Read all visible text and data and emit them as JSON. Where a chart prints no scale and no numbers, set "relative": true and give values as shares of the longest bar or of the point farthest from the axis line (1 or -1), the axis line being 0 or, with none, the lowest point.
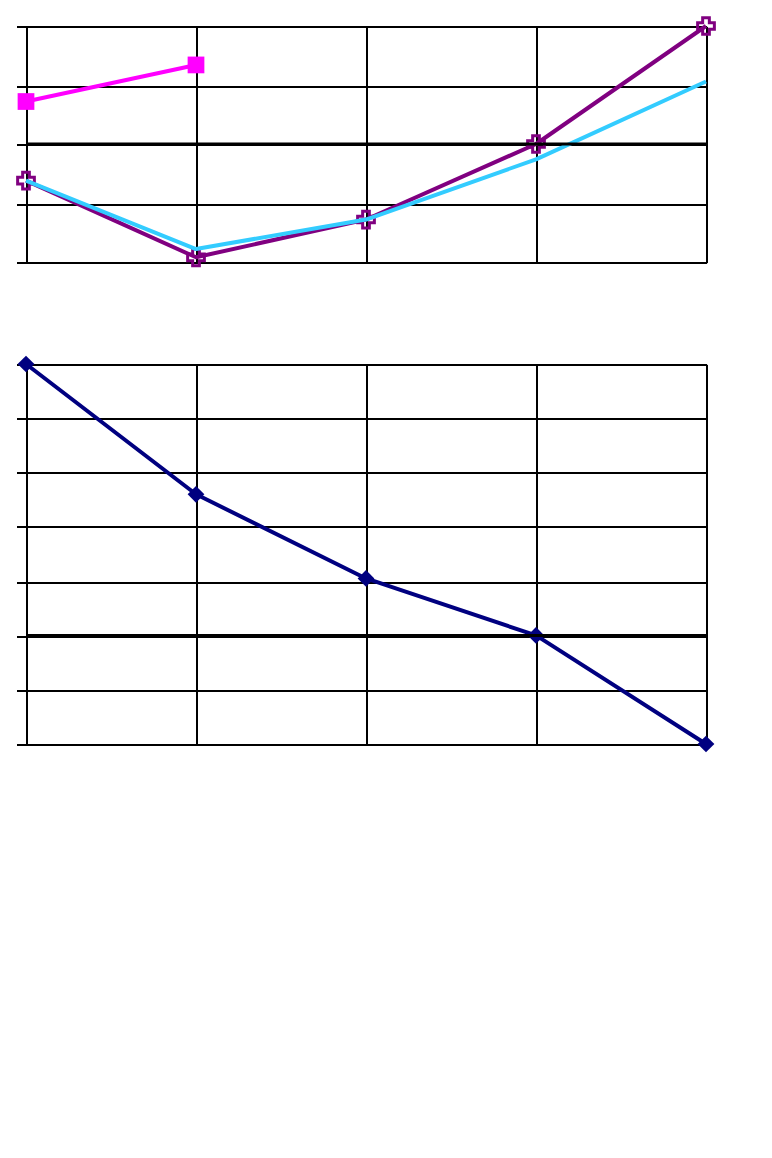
{
  "chart_data": [
    {
      "type": "line",
      "relative": true,
      "categories": [
        null,
        null,
        null,
        null,
        null
      ],
      "grid": true,
      "tick_labels": false,
      "series": [
        {
          "color": "#ff00ff",
          "marker": "square",
          "values": [
            0.36,
            0.67,
            null,
            null,
            null
          ]
        },
        {
          "color": "#800080",
          "marker": "cross",
          "values": [
            -0.31,
            -0.96,
            -0.64,
            0,
            1
          ]
        },
        {
          "color": "#33ccff",
          "marker": "none",
          "values": [
            -0.31,
            -0.89,
            -0.64,
            -0.13,
            0.53
          ]
        }
      ]
    },
    {
      "type": "line",
      "relative": true,
      "categories": [
        null,
        null,
        null,
        null,
        null
      ],
      "grid": true,
      "legend": false,
      "tick_labels": false,
      "series": [
        {
          "color": "#000080",
          "marker": "diamond",
          "values": [
            1,
            0.52,
            0.21,
            0,
            -0.4
          ]
        }
      ]
    }
  ]
}
